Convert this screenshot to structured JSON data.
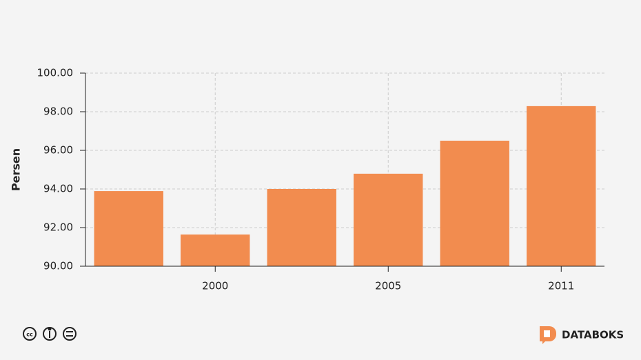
{
  "chart_data": {
    "type": "bar",
    "y_label": "Persen",
    "categories": [
      null,
      "2000",
      null,
      "2005",
      null,
      "2011"
    ],
    "values": [
      93.89,
      91.64,
      94.0,
      94.79,
      96.5,
      98.29
    ],
    "color": "#f28c4f",
    "ylim": [
      90,
      100
    ],
    "yticks": [
      {
        "value": 90,
        "label": "90.00"
      },
      {
        "value": 92,
        "label": "92.00"
      },
      {
        "value": 94,
        "label": "94.00"
      },
      {
        "value": 96,
        "label": "96.00"
      },
      {
        "value": 98,
        "label": "98.00"
      },
      {
        "value": 100,
        "label": "100.00"
      }
    ],
    "grid": true
  },
  "brand": "DATABOKS"
}
